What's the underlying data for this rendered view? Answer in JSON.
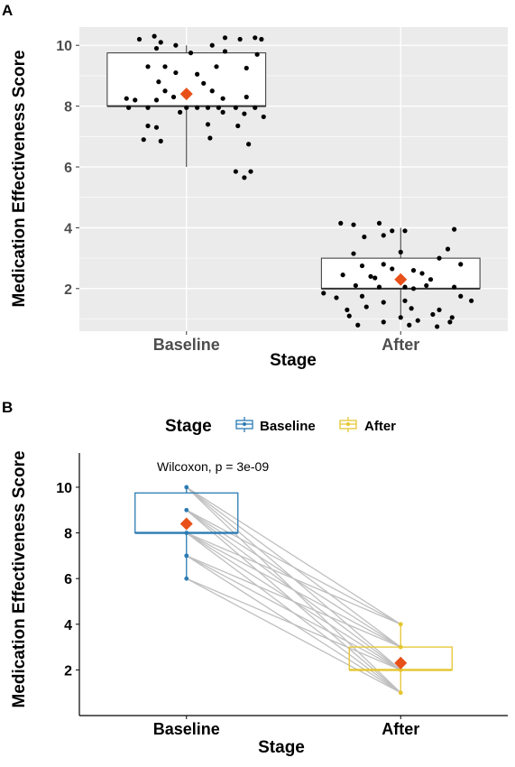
{
  "colors": {
    "panel_bg": "#ebebeb",
    "grid": "#ffffff",
    "points": "#000000",
    "mean_marker": "#e8501a",
    "baseline": "#2b7bb3",
    "after": "#e5c52f",
    "pair_lines": "#bfbfbf"
  },
  "chart_data": [
    {
      "panel": "A",
      "type": "box-jitter",
      "xlabel": "Stage",
      "ylabel": "Medication Effectiveness Score",
      "categories": [
        "Baseline",
        "After"
      ],
      "ylim": [
        0.6,
        10.6
      ],
      "yticks": [
        "2",
        "4",
        "6",
        "8",
        "10"
      ],
      "boxes": [
        {
          "name": "Baseline",
          "q1": 8.0,
          "median": 8.0,
          "q3": 9.75,
          "whisker_low": 6.0,
          "whisker_high": 10.0,
          "mean": 8.4
        },
        {
          "name": "After",
          "q1": 2.0,
          "median": 2.0,
          "q3": 3.0,
          "whisker_low": 1.0,
          "whisker_high": 4.0,
          "mean": 2.3
        }
      ],
      "points": [
        {
          "stage": "Baseline",
          "x": -0.22,
          "y": 10.2
        },
        {
          "stage": "Baseline",
          "x": -0.15,
          "y": 10.3
        },
        {
          "stage": "Baseline",
          "x": -0.12,
          "y": 10.1
        },
        {
          "stage": "Baseline",
          "x": -0.05,
          "y": 10.0
        },
        {
          "stage": "Baseline",
          "x": 0.12,
          "y": 10.0
        },
        {
          "stage": "Baseline",
          "x": 0.18,
          "y": 10.25
        },
        {
          "stage": "Baseline",
          "x": 0.25,
          "y": 10.2
        },
        {
          "stage": "Baseline",
          "x": 0.32,
          "y": 10.25
        },
        {
          "stage": "Baseline",
          "x": 0.35,
          "y": 10.2
        },
        {
          "stage": "Baseline",
          "x": -0.14,
          "y": 9.9
        },
        {
          "stage": "Baseline",
          "x": 0.02,
          "y": 9.75
        },
        {
          "stage": "Baseline",
          "x": 0.18,
          "y": 9.8
        },
        {
          "stage": "Baseline",
          "x": 0.33,
          "y": 9.7
        },
        {
          "stage": "Baseline",
          "x": -0.18,
          "y": 9.3
        },
        {
          "stage": "Baseline",
          "x": -0.1,
          "y": 9.3
        },
        {
          "stage": "Baseline",
          "x": 0.14,
          "y": 9.3
        },
        {
          "stage": "Baseline",
          "x": 0.28,
          "y": 9.25
        },
        {
          "stage": "Baseline",
          "x": -0.05,
          "y": 9.1
        },
        {
          "stage": "Baseline",
          "x": 0.05,
          "y": 9.05
        },
        {
          "stage": "Baseline",
          "x": -0.13,
          "y": 8.8
        },
        {
          "stage": "Baseline",
          "x": 0.08,
          "y": 8.75
        },
        {
          "stage": "Baseline",
          "x": -0.1,
          "y": 8.5
        },
        {
          "stage": "Baseline",
          "x": 0.12,
          "y": 8.5
        },
        {
          "stage": "Baseline",
          "x": -0.28,
          "y": 8.25
        },
        {
          "stage": "Baseline",
          "x": -0.24,
          "y": 8.2
        },
        {
          "stage": "Baseline",
          "x": -0.14,
          "y": 8.2
        },
        {
          "stage": "Baseline",
          "x": -0.06,
          "y": 8.3
        },
        {
          "stage": "Baseline",
          "x": 0.17,
          "y": 8.25
        },
        {
          "stage": "Baseline",
          "x": 0.28,
          "y": 8.3
        },
        {
          "stage": "Baseline",
          "x": -0.27,
          "y": 7.95
        },
        {
          "stage": "Baseline",
          "x": -0.18,
          "y": 7.95
        },
        {
          "stage": "Baseline",
          "x": 0.0,
          "y": 7.95
        },
        {
          "stage": "Baseline",
          "x": 0.05,
          "y": 7.95
        },
        {
          "stage": "Baseline",
          "x": 0.1,
          "y": 7.95
        },
        {
          "stage": "Baseline",
          "x": 0.15,
          "y": 7.95
        },
        {
          "stage": "Baseline",
          "x": 0.23,
          "y": 7.95
        },
        {
          "stage": "Baseline",
          "x": 0.32,
          "y": 7.95
        },
        {
          "stage": "Baseline",
          "x": -0.03,
          "y": 7.8
        },
        {
          "stage": "Baseline",
          "x": 0.17,
          "y": 7.8
        },
        {
          "stage": "Baseline",
          "x": 0.27,
          "y": 7.75
        },
        {
          "stage": "Baseline",
          "x": 0.36,
          "y": 7.65
        },
        {
          "stage": "Baseline",
          "x": -0.18,
          "y": 7.35
        },
        {
          "stage": "Baseline",
          "x": -0.14,
          "y": 7.3
        },
        {
          "stage": "Baseline",
          "x": 0.1,
          "y": 7.4
        },
        {
          "stage": "Baseline",
          "x": 0.24,
          "y": 7.35
        },
        {
          "stage": "Baseline",
          "x": -0.2,
          "y": 6.9
        },
        {
          "stage": "Baseline",
          "x": -0.12,
          "y": 6.85
        },
        {
          "stage": "Baseline",
          "x": 0.11,
          "y": 6.95
        },
        {
          "stage": "Baseline",
          "x": 0.29,
          "y": 6.75
        },
        {
          "stage": "Baseline",
          "x": 0.23,
          "y": 5.85
        },
        {
          "stage": "Baseline",
          "x": 0.27,
          "y": 5.65
        },
        {
          "stage": "Baseline",
          "x": 0.3,
          "y": 5.85
        },
        {
          "stage": "After",
          "x": -0.28,
          "y": 4.15
        },
        {
          "stage": "After",
          "x": -0.22,
          "y": 4.1
        },
        {
          "stage": "After",
          "x": -0.1,
          "y": 4.15
        },
        {
          "stage": "After",
          "x": -0.04,
          "y": 3.9
        },
        {
          "stage": "After",
          "x": 0.02,
          "y": 3.9
        },
        {
          "stage": "After",
          "x": 0.25,
          "y": 3.95
        },
        {
          "stage": "After",
          "x": -0.17,
          "y": 3.7
        },
        {
          "stage": "After",
          "x": -0.08,
          "y": 3.75
        },
        {
          "stage": "After",
          "x": 0.22,
          "y": 3.3
        },
        {
          "stage": "After",
          "x": -0.22,
          "y": 3.15
        },
        {
          "stage": "After",
          "x": 0.0,
          "y": 3.2
        },
        {
          "stage": "After",
          "x": 0.18,
          "y": 3.0
        },
        {
          "stage": "After",
          "x": -0.18,
          "y": 2.75
        },
        {
          "stage": "After",
          "x": -0.08,
          "y": 2.8
        },
        {
          "stage": "After",
          "x": -0.04,
          "y": 2.65
        },
        {
          "stage": "After",
          "x": 0.06,
          "y": 2.6
        },
        {
          "stage": "After",
          "x": 0.28,
          "y": 2.8
        },
        {
          "stage": "After",
          "x": -0.27,
          "y": 2.45
        },
        {
          "stage": "After",
          "x": -0.14,
          "y": 2.4
        },
        {
          "stage": "After",
          "x": -0.12,
          "y": 2.35
        },
        {
          "stage": "After",
          "x": 0.1,
          "y": 2.5
        },
        {
          "stage": "After",
          "x": 0.14,
          "y": 2.3
        },
        {
          "stage": "After",
          "x": -0.21,
          "y": 2.1
        },
        {
          "stage": "After",
          "x": -0.1,
          "y": 2.05
        },
        {
          "stage": "After",
          "x": 0.02,
          "y": 2.05
        },
        {
          "stage": "After",
          "x": 0.06,
          "y": 2.0
        },
        {
          "stage": "After",
          "x": 0.12,
          "y": 2.1
        },
        {
          "stage": "After",
          "x": 0.25,
          "y": 2.05
        },
        {
          "stage": "After",
          "x": -0.36,
          "y": 1.85
        },
        {
          "stage": "After",
          "x": -0.3,
          "y": 1.7
        },
        {
          "stage": "After",
          "x": -0.18,
          "y": 1.75
        },
        {
          "stage": "After",
          "x": -0.08,
          "y": 1.55
        },
        {
          "stage": "After",
          "x": 0.02,
          "y": 1.6
        },
        {
          "stage": "After",
          "x": 0.28,
          "y": 1.75
        },
        {
          "stage": "After",
          "x": 0.33,
          "y": 1.6
        },
        {
          "stage": "After",
          "x": -0.25,
          "y": 1.3
        },
        {
          "stage": "After",
          "x": -0.16,
          "y": 1.4
        },
        {
          "stage": "After",
          "x": 0.05,
          "y": 1.35
        },
        {
          "stage": "After",
          "x": 0.18,
          "y": 1.3
        },
        {
          "stage": "After",
          "x": -0.24,
          "y": 1.1
        },
        {
          "stage": "After",
          "x": 0.0,
          "y": 1.05
        },
        {
          "stage": "After",
          "x": 0.15,
          "y": 1.15
        },
        {
          "stage": "After",
          "x": 0.24,
          "y": 1.05
        },
        {
          "stage": "After",
          "x": -0.08,
          "y": 0.9
        },
        {
          "stage": "After",
          "x": 0.04,
          "y": 0.8
        },
        {
          "stage": "After",
          "x": 0.17,
          "y": 0.75
        },
        {
          "stage": "After",
          "x": 0.23,
          "y": 0.9
        },
        {
          "stage": "After",
          "x": -0.2,
          "y": 0.8
        },
        {
          "stage": "After",
          "x": 0.08,
          "y": 0.95
        }
      ]
    },
    {
      "panel": "B",
      "type": "paired-box",
      "xlabel": "Stage",
      "ylabel": "Medication Effectiveness Score",
      "categories": [
        "Baseline",
        "After"
      ],
      "ylim": [
        0,
        11.5
      ],
      "yticks": [
        "2",
        "4",
        "6",
        "8",
        "10"
      ],
      "legend_title": "Stage",
      "legend_position": "top",
      "legend_entries": [
        "Baseline",
        "After"
      ],
      "annotation": "Wilcoxon, p = 3e-09",
      "boxes": [
        {
          "name": "Baseline",
          "q1": 8.0,
          "median": 8.0,
          "q3": 9.75,
          "whisker_low": 6.0,
          "whisker_high": 10.0,
          "mean": 8.4
        },
        {
          "name": "After",
          "q1": 2.0,
          "median": 2.0,
          "q3": 3.0,
          "whisker_low": 1.0,
          "whisker_high": 4.0,
          "mean": 2.3
        }
      ],
      "pairs": [
        [
          10,
          4
        ],
        [
          10,
          3
        ],
        [
          10,
          2
        ],
        [
          10,
          1
        ],
        [
          9,
          4
        ],
        [
          9,
          3
        ],
        [
          9,
          2
        ],
        [
          9,
          1
        ],
        [
          8,
          4
        ],
        [
          8,
          3
        ],
        [
          8,
          2
        ],
        [
          8,
          1
        ],
        [
          7,
          3
        ],
        [
          7,
          2
        ],
        [
          7,
          1
        ],
        [
          6,
          2
        ],
        [
          6,
          1
        ]
      ],
      "baseline_points": [
        10,
        9,
        8,
        7,
        6
      ],
      "after_points": [
        4,
        3,
        2,
        1
      ]
    }
  ]
}
